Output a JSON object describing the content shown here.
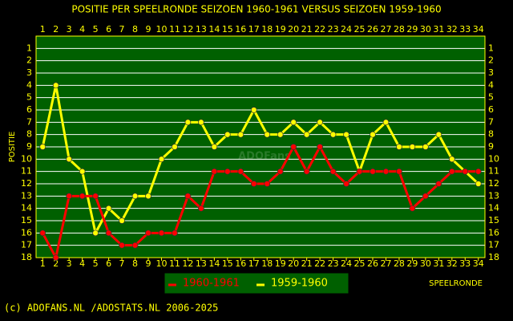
{
  "chart_data": {
    "type": "line",
    "title": "POSITIE PER SPEELRONDE SEIZOEN 1960-1961 VERSUS SEIZOEN 1959-1960",
    "x_label": "SPEELRONDE",
    "y_label": "POSITIE",
    "x": [
      1,
      2,
      3,
      4,
      5,
      6,
      7,
      8,
      9,
      10,
      11,
      12,
      13,
      14,
      15,
      16,
      17,
      18,
      19,
      20,
      21,
      22,
      23,
      24,
      25,
      26,
      27,
      28,
      29,
      30,
      31,
      32,
      33,
      34
    ],
    "xlim": [
      0.5,
      34.5
    ],
    "xticks": [
      1,
      2,
      3,
      4,
      5,
      6,
      7,
      8,
      9,
      10,
      11,
      12,
      13,
      14,
      15,
      16,
      17,
      18,
      19,
      20,
      21,
      22,
      23,
      24,
      25,
      26,
      27,
      28,
      29,
      30,
      31,
      32,
      33,
      34
    ],
    "ylim": [
      0,
      18
    ],
    "y_inverted": true,
    "yticks": [
      1,
      2,
      3,
      4,
      5,
      6,
      7,
      8,
      9,
      10,
      11,
      12,
      13,
      14,
      15,
      16,
      17,
      18
    ],
    "grid": true,
    "series": [
      {
        "name": "1960-1961",
        "color": "#ff0000",
        "values": [
          16,
          18,
          13,
          13,
          13,
          16,
          17,
          17,
          16,
          16,
          16,
          13,
          14,
          11,
          11,
          11,
          12,
          12,
          11,
          9,
          11,
          9,
          11,
          12,
          11,
          11,
          11,
          11,
          14,
          13,
          12,
          11,
          11,
          11
        ]
      },
      {
        "name": "1959-1960",
        "color": "#ffff00",
        "values": [
          9,
          4,
          10,
          11,
          16,
          14,
          15,
          13,
          13,
          10,
          9,
          7,
          7,
          9,
          8,
          8,
          6,
          8,
          8,
          7,
          8,
          7,
          8,
          8,
          11,
          8,
          7,
          9,
          9,
          9,
          8,
          10,
          11,
          12
        ]
      }
    ],
    "watermark": "ADOFans",
    "footer": "(c) ADOFANS.NL /ADOSTATS.NL 2006-2025"
  }
}
